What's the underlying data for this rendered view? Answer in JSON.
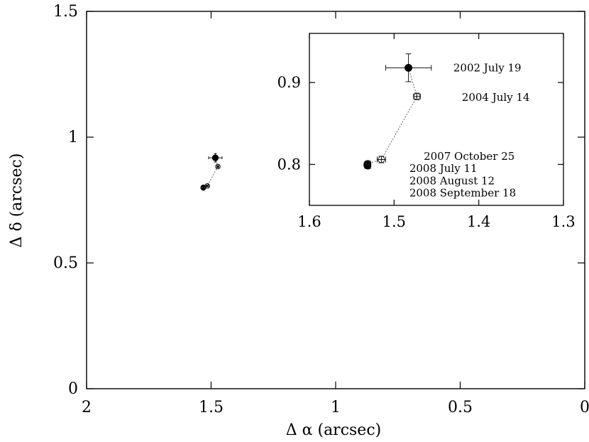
{
  "chart_data": [
    {
      "type": "scatter",
      "title": "",
      "xlabel": "Δ α (arcsec)",
      "ylabel": "Δ δ (arcsec)",
      "xlim": [
        2,
        0
      ],
      "ylim": [
        0,
        1.5
      ],
      "x_reversed": true,
      "xticks": [
        2,
        1.5,
        1,
        0.5,
        0
      ],
      "xtick_labels": [
        "2",
        "1.5",
        "1",
        "0.5",
        "0"
      ],
      "yticks": [
        0,
        0.5,
        1,
        1.5
      ],
      "ytick_labels": [
        "0",
        "0.5",
        "1",
        "1.5"
      ],
      "grid": false,
      "points": [
        {
          "x": 1.483,
          "y": 0.918,
          "xerr": 0.027,
          "yerr": 0.017,
          "marker": "filled-circle"
        },
        {
          "x": 1.473,
          "y": 0.883,
          "xerr": 0.004,
          "yerr": 0.004,
          "marker": "open-circle"
        },
        {
          "x": 1.515,
          "y": 0.806,
          "xerr": 0.005,
          "yerr": 0.004,
          "marker": "open-circle"
        },
        {
          "x": 1.531,
          "y": 0.801,
          "xerr": 0.003,
          "yerr": 0.003,
          "marker": "open-circle"
        },
        {
          "x": 1.532,
          "y": 0.8,
          "xerr": 0.003,
          "yerr": 0.003,
          "marker": "open-circle"
        },
        {
          "x": 1.532,
          "y": 0.799,
          "xerr": 0.003,
          "yerr": 0.003,
          "marker": "open-circle"
        },
        {
          "x": 1.531,
          "y": 0.798,
          "xerr": 0.003,
          "yerr": 0.003,
          "marker": "open-circle"
        }
      ]
    },
    {
      "type": "scatter",
      "role": "inset",
      "title": "",
      "xlabel": "",
      "ylabel": "",
      "xlim": [
        1.6,
        1.3
      ],
      "ylim": [
        0.75,
        0.96
      ],
      "x_reversed": true,
      "xticks": [
        1.6,
        1.5,
        1.4,
        1.3
      ],
      "xtick_labels": [
        "1.6",
        "1.5",
        "1.4",
        "1.3"
      ],
      "yticks": [
        0.8,
        0.9
      ],
      "ytick_labels": [
        "0.8",
        "0.9"
      ],
      "grid": false,
      "points": [
        {
          "x": 1.483,
          "y": 0.918,
          "xerr": 0.027,
          "yerr": 0.017,
          "marker": "filled-circle",
          "label": "2002 July 19"
        },
        {
          "x": 1.473,
          "y": 0.883,
          "xerr": 0.004,
          "yerr": 0.004,
          "marker": "open-circle",
          "label": "2004 July 14"
        },
        {
          "x": 1.515,
          "y": 0.806,
          "xerr": 0.005,
          "yerr": 0.004,
          "marker": "open-circle",
          "label": "2007 October 25"
        },
        {
          "x": 1.531,
          "y": 0.801,
          "xerr": 0.003,
          "yerr": 0.003,
          "marker": "open-circle",
          "label": "2008 July 11"
        },
        {
          "x": 1.532,
          "y": 0.8,
          "xerr": 0.003,
          "yerr": 0.003,
          "marker": "open-circle",
          "label": "2008 August 12"
        },
        {
          "x": 1.532,
          "y": 0.799,
          "xerr": 0.003,
          "yerr": 0.003,
          "marker": "open-circle",
          "label": "2008 September 18"
        },
        {
          "x": 1.531,
          "y": 0.798,
          "xerr": 0.003,
          "yerr": 0.003,
          "marker": "open-circle"
        }
      ],
      "annotations": [
        {
          "text": "2002 July 19",
          "x": 1.43,
          "y": 0.918
        },
        {
          "text": "2004 July 14",
          "x": 1.42,
          "y": 0.882
        },
        {
          "text": "2007 October 25",
          "x": 1.465,
          "y": 0.81
        },
        {
          "text": "2008 July 11",
          "x": 1.482,
          "y": 0.795
        },
        {
          "text": "2008 August 12",
          "x": 1.482,
          "y": 0.78
        },
        {
          "text": "2008 September 18",
          "x": 1.482,
          "y": 0.765
        }
      ]
    }
  ]
}
